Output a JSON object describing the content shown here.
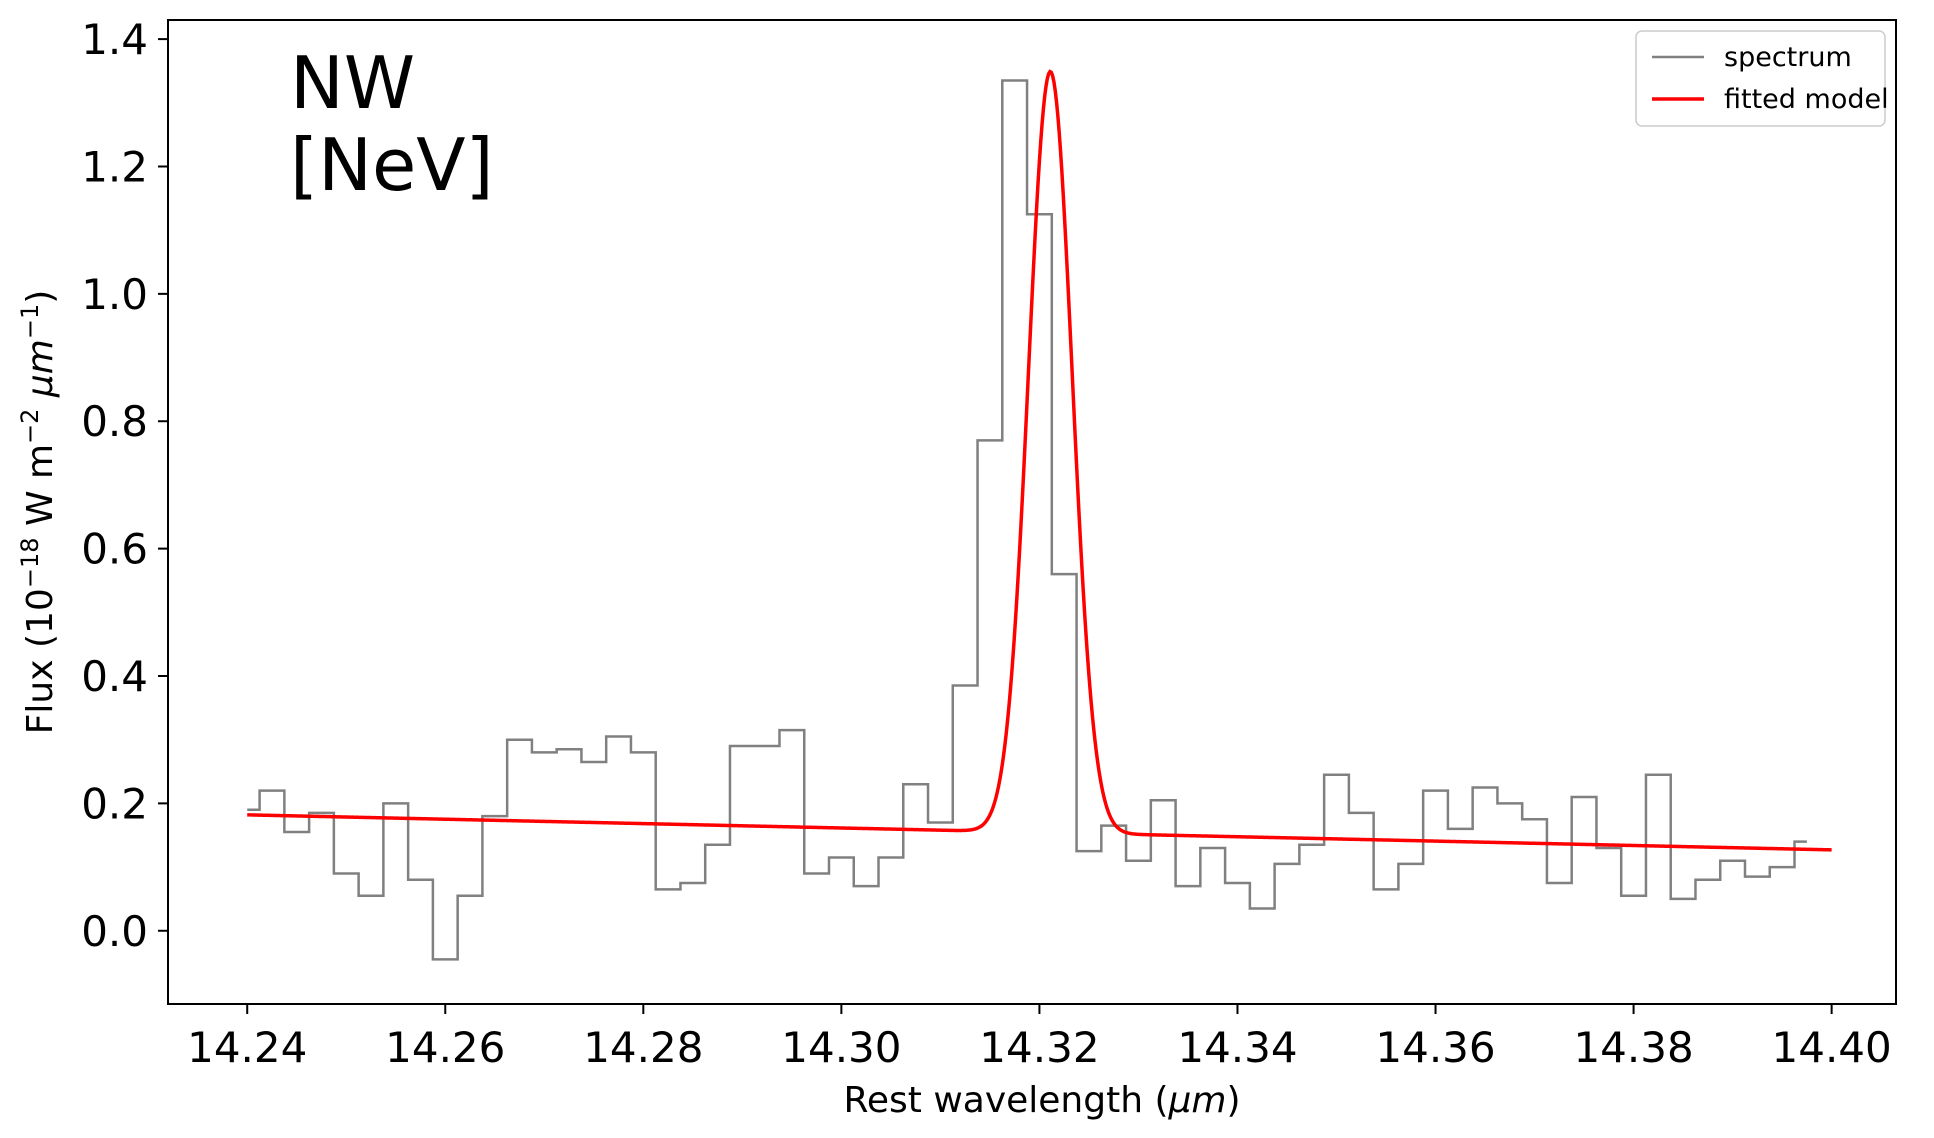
{
  "chart_data": {
    "type": "line",
    "title": "",
    "annotations": [
      "NW",
      "[NeV]"
    ],
    "xlabel": {
      "text": "Rest wavelength (",
      "unit": "μm",
      "suffix": ")"
    },
    "ylabel": {
      "text": "Flux (10",
      "exp1": "−18",
      "mid": " W m",
      "exp2": "−2",
      "unit": " μm",
      "exp3": "−1",
      "suffix": ")"
    },
    "xlim": [
      14.232,
      14.4065
    ],
    "ylim": [
      -0.115,
      1.43
    ],
    "xticks": [
      14.24,
      14.26,
      14.28,
      14.3,
      14.32,
      14.34,
      14.36,
      14.38,
      14.4
    ],
    "xtick_labels": [
      "14.24",
      "14.26",
      "14.28",
      "14.30",
      "14.32",
      "14.34",
      "14.36",
      "14.38",
      "14.40"
    ],
    "yticks": [
      0.0,
      0.2,
      0.4,
      0.6,
      0.8,
      1.0,
      1.2,
      1.4
    ],
    "ytick_labels": [
      "0.0",
      "0.2",
      "0.4",
      "0.6",
      "0.8",
      "1.0",
      "1.2",
      "1.4"
    ],
    "grid": false,
    "legend_position": "top-right",
    "series": [
      {
        "name": "spectrum",
        "color": "#808080",
        "style": "steps-mid",
        "bin_width": 0.0025,
        "x_start": 14.24,
        "values": [
          0.19,
          0.22,
          0.155,
          0.185,
          0.09,
          0.055,
          0.2,
          0.08,
          -0.045,
          0.055,
          0.18,
          0.3,
          0.28,
          0.285,
          0.265,
          0.305,
          0.28,
          0.065,
          0.075,
          0.135,
          0.29,
          0.29,
          0.315,
          0.09,
          0.115,
          0.07,
          0.115,
          0.23,
          0.17,
          0.385,
          0.77,
          1.335,
          1.125,
          0.56,
          0.125,
          0.165,
          0.11,
          0.205,
          0.07,
          0.13,
          0.075,
          0.035,
          0.105,
          0.135,
          0.245,
          0.185,
          0.065,
          0.105,
          0.22,
          0.16,
          0.225,
          0.2,
          0.175,
          0.075,
          0.21,
          0.13,
          0.055,
          0.245,
          0.05,
          0.08,
          0.11,
          0.085,
          0.1,
          0.14
        ]
      },
      {
        "name": "fitted model",
        "color": "#ff0000",
        "style": "line",
        "model": {
          "kind": "gaussian_plus_linear",
          "continuum_start": [
            14.24,
            0.182
          ],
          "continuum_end": [
            14.4,
            0.127
          ],
          "amplitude": 1.195,
          "center": 14.3211,
          "sigma": 0.0022
        }
      }
    ]
  }
}
